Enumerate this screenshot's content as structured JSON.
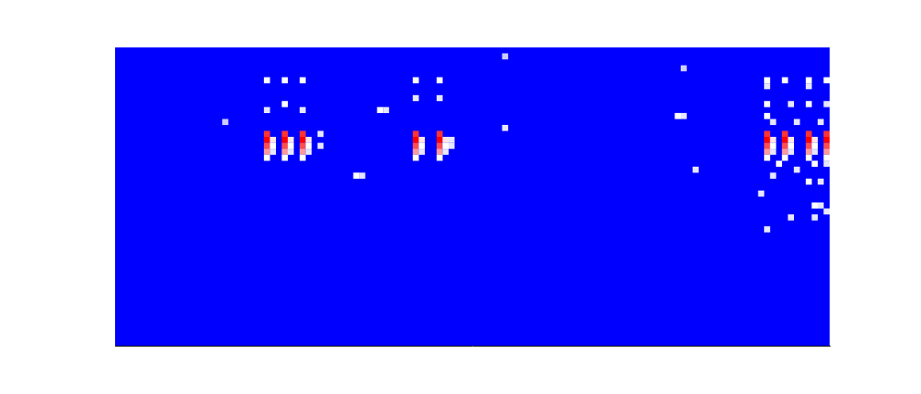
{
  "chart_data": {
    "type": "heatmap",
    "xlim": [
      -0.5,
      119.5
    ],
    "ylim": [
      -0.5,
      49.5
    ],
    "zlim": [
      0,
      1
    ],
    "grid": false,
    "tick_labels": false,
    "cells": [
      [
        25,
        35,
        0.9
      ],
      [
        25,
        34,
        1
      ],
      [
        25,
        33,
        0.85
      ],
      [
        25,
        32,
        0.7
      ],
      [
        25,
        31,
        0.5
      ],
      [
        26,
        34,
        0.55
      ],
      [
        26,
        33,
        0.5
      ],
      [
        26,
        32,
        0.45
      ],
      [
        28,
        35,
        0.9
      ],
      [
        28,
        34,
        1
      ],
      [
        28,
        33,
        0.85
      ],
      [
        28,
        32,
        0.7
      ],
      [
        28,
        31,
        0.5
      ],
      [
        29,
        34,
        0.55
      ],
      [
        29,
        33,
        0.5
      ],
      [
        29,
        32,
        0.45
      ],
      [
        31,
        35,
        0.9
      ],
      [
        31,
        34,
        1
      ],
      [
        31,
        33,
        0.85
      ],
      [
        31,
        32,
        0.7
      ],
      [
        31,
        31,
        0.5
      ],
      [
        32,
        34,
        0.55
      ],
      [
        32,
        33,
        0.5
      ],
      [
        32,
        32,
        0.45
      ],
      [
        50,
        35,
        0.9
      ],
      [
        50,
        34,
        1
      ],
      [
        50,
        33,
        0.85
      ],
      [
        50,
        32,
        0.7
      ],
      [
        50,
        31,
        0.5
      ],
      [
        51,
        34,
        0.55
      ],
      [
        51,
        33,
        0.5
      ],
      [
        51,
        32,
        0.45
      ],
      [
        54,
        35,
        0.9
      ],
      [
        54,
        34,
        1
      ],
      [
        54,
        33,
        0.85
      ],
      [
        54,
        32,
        0.7
      ],
      [
        54,
        31,
        0.5
      ],
      [
        55,
        34,
        0.55
      ],
      [
        55,
        33,
        0.5
      ],
      [
        55,
        32,
        0.45
      ],
      [
        109,
        35,
        0.9
      ],
      [
        109,
        34,
        1
      ],
      [
        109,
        33,
        0.85
      ],
      [
        109,
        32,
        0.7
      ],
      [
        109,
        31,
        0.5
      ],
      [
        110,
        34,
        0.55
      ],
      [
        110,
        33,
        0.5
      ],
      [
        110,
        32,
        0.45
      ],
      [
        112,
        35,
        0.9
      ],
      [
        112,
        34,
        1
      ],
      [
        112,
        33,
        0.85
      ],
      [
        112,
        32,
        0.7
      ],
      [
        112,
        31,
        0.5
      ],
      [
        113,
        34,
        0.55
      ],
      [
        113,
        33,
        0.5
      ],
      [
        113,
        32,
        0.45
      ],
      [
        116,
        35,
        0.9
      ],
      [
        116,
        34,
        1
      ],
      [
        116,
        33,
        0.85
      ],
      [
        116,
        32,
        0.7
      ],
      [
        116,
        31,
        0.5
      ],
      [
        117,
        34,
        0.55
      ],
      [
        117,
        33,
        0.5
      ],
      [
        117,
        32,
        0.45
      ],
      [
        119,
        35,
        0.9
      ],
      [
        119,
        34,
        1
      ],
      [
        119,
        33,
        0.85
      ],
      [
        119,
        32,
        0.7
      ],
      [
        119,
        31,
        0.5
      ],
      [
        25,
        44,
        0.5
      ],
      [
        28,
        44,
        0.5
      ],
      [
        31,
        44,
        0.5
      ],
      [
        25,
        39,
        0.45
      ],
      [
        28,
        40,
        0.5
      ],
      [
        31,
        39,
        0.45
      ],
      [
        34,
        35,
        0.45
      ],
      [
        34,
        33,
        0.45
      ],
      [
        18,
        37,
        0.4
      ],
      [
        50,
        44,
        0.5
      ],
      [
        54,
        44,
        0.5
      ],
      [
        50,
        41,
        0.45
      ],
      [
        54,
        41,
        0.45
      ],
      [
        56,
        34,
        0.45
      ],
      [
        56,
        33,
        0.45
      ],
      [
        44,
        39,
        0.5
      ],
      [
        45,
        39,
        0.45
      ],
      [
        40,
        28,
        0.5
      ],
      [
        41,
        28,
        0.45
      ],
      [
        65,
        48,
        0.4
      ],
      [
        65,
        36,
        0.45
      ],
      [
        95,
        46,
        0.4
      ],
      [
        94,
        38,
        0.5
      ],
      [
        95,
        38,
        0.45
      ],
      [
        97,
        29,
        0.45
      ],
      [
        109,
        44,
        0.5
      ],
      [
        112,
        44,
        0.5
      ],
      [
        116,
        44,
        0.5
      ],
      [
        119,
        44,
        0.5
      ],
      [
        109,
        43,
        0.45
      ],
      [
        116,
        43,
        0.45
      ],
      [
        109,
        40,
        0.5
      ],
      [
        113,
        40,
        0.45
      ],
      [
        116,
        40,
        0.5
      ],
      [
        119,
        40,
        0.45
      ],
      [
        109,
        38,
        0.5
      ],
      [
        110,
        37,
        0.45
      ],
      [
        114,
        37,
        0.45
      ],
      [
        118,
        37,
        0.45
      ],
      [
        111,
        30,
        0.5
      ],
      [
        114,
        29,
        0.45
      ],
      [
        117,
        30,
        0.5
      ],
      [
        119,
        30,
        0.45
      ],
      [
        110,
        28,
        0.45
      ],
      [
        116,
        27,
        0.5
      ],
      [
        118,
        27,
        0.45
      ],
      [
        108,
        25,
        0.45
      ],
      [
        117,
        23,
        0.5
      ],
      [
        118,
        23,
        0.45
      ],
      [
        113,
        21,
        0.45
      ],
      [
        117,
        21,
        0.45
      ],
      [
        119,
        22,
        0.45
      ],
      [
        109,
        19,
        0.45
      ]
    ]
  }
}
